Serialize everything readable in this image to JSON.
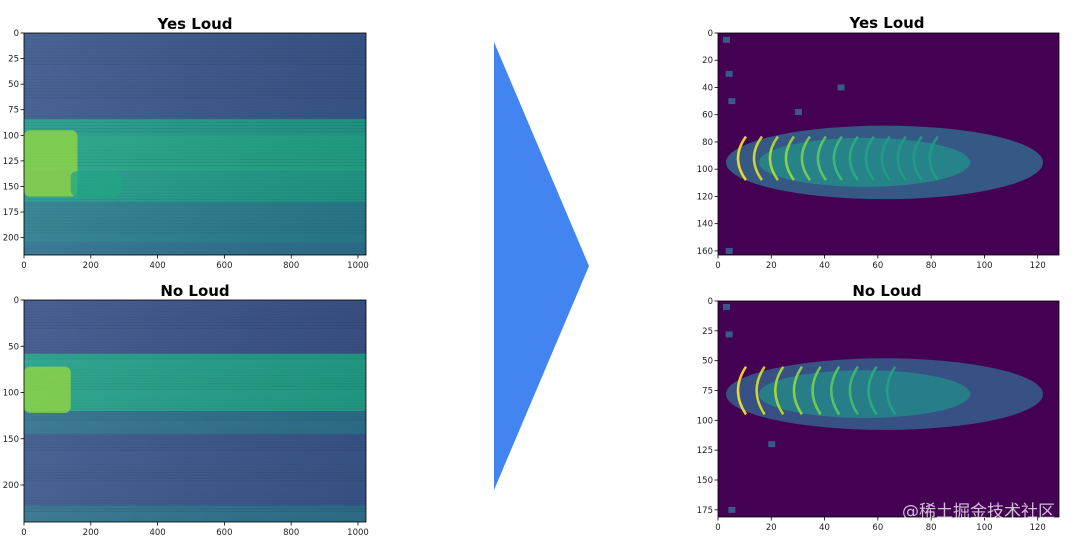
{
  "chart_data": [
    {
      "type": "heatmap",
      "title": "Yes Loud",
      "colormap": "viridis",
      "xlim": [
        0,
        1024
      ],
      "ylim": [
        217,
        0
      ],
      "x_ticks": [
        0,
        200,
        400,
        600,
        800,
        1000
      ],
      "y_ticks": [
        0,
        25,
        50,
        75,
        100,
        125,
        150,
        175,
        200
      ],
      "bands": [
        {
          "y": [
            0,
            84
          ],
          "level": 0.34
        },
        {
          "y": [
            84,
            100
          ],
          "level": 0.55
        },
        {
          "y": [
            100,
            135
          ],
          "level": 0.6
        },
        {
          "y": [
            135,
            165
          ],
          "level": 0.55
        },
        {
          "y": [
            165,
            205
          ],
          "level": 0.45
        },
        {
          "y": [
            205,
            217
          ],
          "level": 0.42
        }
      ],
      "hotspots": [
        {
          "x": [
            0,
            160
          ],
          "y": [
            95,
            160
          ],
          "level": 0.85
        },
        {
          "x": [
            140,
            290
          ],
          "y": [
            135,
            160
          ],
          "level": 0.62
        }
      ]
    },
    {
      "type": "heatmap",
      "title": "No Loud",
      "colormap": "viridis",
      "xlim": [
        0,
        1024
      ],
      "ylim": [
        240,
        0
      ],
      "x_ticks": [
        0,
        200,
        400,
        600,
        800,
        1000
      ],
      "y_ticks": [
        0,
        50,
        100,
        150,
        200
      ],
      "bands": [
        {
          "y": [
            0,
            58
          ],
          "level": 0.32
        },
        {
          "y": [
            58,
            120
          ],
          "level": 0.58
        },
        {
          "y": [
            120,
            145
          ],
          "level": 0.42
        },
        {
          "y": [
            145,
            222
          ],
          "level": 0.34
        },
        {
          "y": [
            222,
            240
          ],
          "level": 0.42
        }
      ],
      "hotspots": [
        {
          "x": [
            0,
            140
          ],
          "y": [
            72,
            122
          ],
          "level": 0.85
        }
      ]
    },
    {
      "type": "heatmap",
      "title": "Yes Loud",
      "colormap": "viridis",
      "xlim": [
        0,
        128
      ],
      "ylim": [
        163,
        0
      ],
      "x_ticks": [
        0,
        20,
        40,
        60,
        80,
        100,
        120
      ],
      "y_ticks": [
        0,
        20,
        40,
        60,
        80,
        100,
        120,
        140,
        160
      ],
      "background_level": 0.0,
      "blob": {
        "x": [
          3,
          122
        ],
        "y": [
          68,
          122
        ],
        "level": 0.4
      },
      "arcs_x": [
        6,
        12,
        18,
        24,
        30,
        36,
        42,
        48,
        54,
        60,
        66,
        72,
        78
      ],
      "arc_y": [
        76,
        108
      ],
      "specks": [
        [
          3,
          5
        ],
        [
          4,
          30
        ],
        [
          5,
          50
        ],
        [
          4,
          160
        ],
        [
          30,
          58
        ],
        [
          46,
          40
        ]
      ]
    },
    {
      "type": "heatmap",
      "title": "No Loud",
      "colormap": "viridis",
      "xlim": [
        0,
        128
      ],
      "ylim": [
        181,
        0
      ],
      "x_ticks": [
        0,
        20,
        40,
        60,
        80,
        100,
        120
      ],
      "y_ticks": [
        0,
        25,
        50,
        75,
        100,
        125,
        150,
        175
      ],
      "background_level": 0.0,
      "blob": {
        "x": [
          3,
          122
        ],
        "y": [
          48,
          108
        ],
        "level": 0.38
      },
      "arcs_x": [
        6,
        13,
        20,
        27,
        34,
        41,
        48,
        55,
        62
      ],
      "arc_y": [
        55,
        95
      ],
      "specks": [
        [
          3,
          5
        ],
        [
          4,
          28
        ],
        [
          5,
          175
        ],
        [
          20,
          120
        ]
      ]
    }
  ],
  "arrow": {
    "color": "#4285f0"
  },
  "watermark": "@稀土掘金技术社区"
}
